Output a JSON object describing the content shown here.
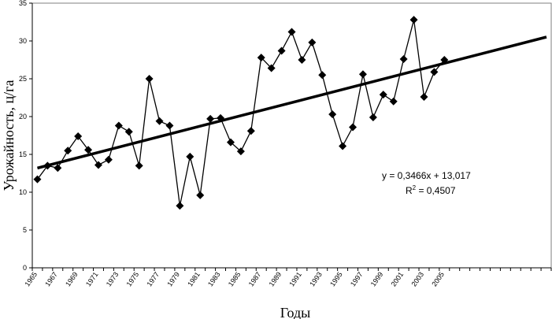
{
  "chart_data": {
    "type": "line",
    "title": "",
    "xlabel": "Годы",
    "ylabel": "Урожайность, ц/га",
    "ylim": [
      0,
      35
    ],
    "yticks": [
      0,
      5,
      10,
      15,
      20,
      25,
      30,
      35
    ],
    "xlim": [
      1965,
      2015
    ],
    "xtick_labels": [
      "1965",
      "1967",
      "1969",
      "1971",
      "1973",
      "1975",
      "1977",
      "1979",
      "1981",
      "1983",
      "1985",
      "1987",
      "1989",
      "1991",
      "1993",
      "1995",
      "1997",
      "1999",
      "2001",
      "2003",
      "2005"
    ],
    "grid": false,
    "series": [
      {
        "name": "Урожайность",
        "marker": "diamond",
        "x": [
          1965,
          1966,
          1967,
          1968,
          1969,
          1970,
          1971,
          1972,
          1973,
          1974,
          1975,
          1976,
          1977,
          1978,
          1979,
          1980,
          1981,
          1982,
          1983,
          1984,
          1985,
          1986,
          1987,
          1988,
          1989,
          1990,
          1991,
          1992,
          1993,
          1994,
          1995,
          1996,
          1997,
          1998,
          1999,
          2000,
          2001,
          2002,
          2003,
          2004,
          2005
        ],
        "values": [
          11.7,
          13.5,
          13.2,
          15.5,
          17.4,
          15.6,
          13.6,
          14.3,
          18.8,
          18.0,
          13.5,
          25.0,
          19.4,
          18.8,
          8.2,
          14.7,
          9.6,
          19.7,
          19.8,
          16.6,
          15.4,
          18.1,
          27.8,
          26.4,
          28.7,
          31.2,
          27.5,
          29.8,
          25.5,
          20.3,
          16.1,
          18.6,
          25.6,
          19.9,
          22.9,
          22.0,
          27.6,
          32.8,
          22.6,
          25.9,
          27.5
        ]
      }
    ],
    "trendline": {
      "slope": 0.3466,
      "intercept": 13.017,
      "x_start": 1965,
      "x_end": 2015,
      "equation": "y = 0,3466x + 13,017",
      "r2_label": "R",
      "r2_sup": "2",
      "r2_value": " = 0,4507"
    }
  }
}
